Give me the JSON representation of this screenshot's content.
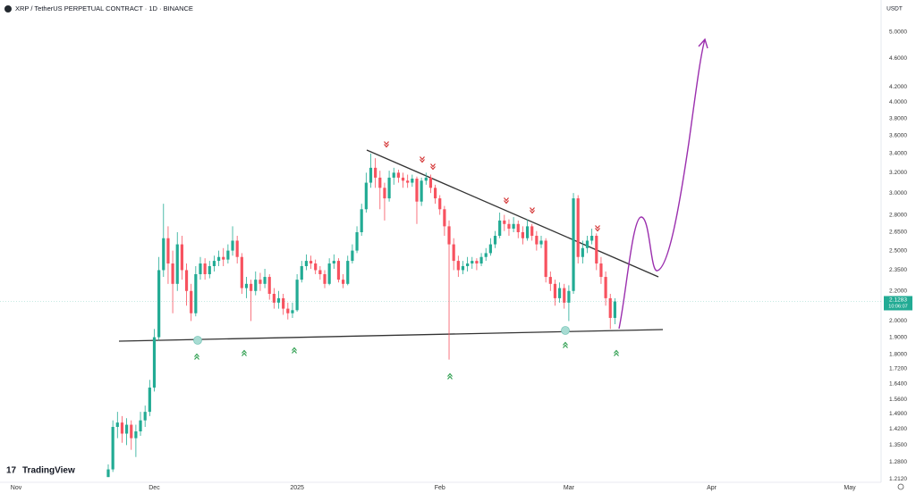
{
  "chart_data": {
    "type": "candlestick",
    "title": "XRP / TetherUS PERPETUAL CONTRACT · 1D · BINANCE",
    "currency": "USDT",
    "watermark": "TradingView",
    "countdown": "10:06:07",
    "log_scale": true,
    "grid": false,
    "up_color": "#22ab94",
    "down_color": "#f7525f",
    "xlim": [
      -23.5,
      167.8
    ],
    "xticks": [
      {
        "value": -20,
        "label": "Nov"
      },
      {
        "value": 10,
        "label": "Dec"
      },
      {
        "value": 41,
        "label": "2025"
      },
      {
        "value": 72,
        "label": "Feb"
      },
      {
        "value": 100,
        "label": "Mar"
      },
      {
        "value": 131,
        "label": "Apr"
      },
      {
        "value": 161,
        "label": "May"
      }
    ],
    "ylim": [
      1.2,
      5.53
    ],
    "yticks": [
      {
        "value": 5,
        "label": "5.0000"
      },
      {
        "value": 4.6,
        "label": "4.6000"
      },
      {
        "value": 4.2,
        "label": "4.2000"
      },
      {
        "value": 4,
        "label": "4.0000"
      },
      {
        "value": 3.8,
        "label": "3.8000"
      },
      {
        "value": 3.6,
        "label": "3.6000"
      },
      {
        "value": 3.4,
        "label": "3.4000"
      },
      {
        "value": 3.2,
        "label": "3.2000"
      },
      {
        "value": 3,
        "label": "3.0000"
      },
      {
        "value": 2.8,
        "label": "2.8000"
      },
      {
        "value": 2.65,
        "label": "2.6500"
      },
      {
        "value": 2.5,
        "label": "2.5000"
      },
      {
        "value": 2.35,
        "label": "2.3500"
      },
      {
        "value": 2.2,
        "label": "2.2000"
      },
      {
        "value": 2,
        "label": "2.0000"
      },
      {
        "value": 1.9,
        "label": "1.9000"
      },
      {
        "value": 1.8,
        "label": "1.8000"
      },
      {
        "value": 1.72,
        "label": "1.7200"
      },
      {
        "value": 1.64,
        "label": "1.6400"
      },
      {
        "value": 1.56,
        "label": "1.5600"
      },
      {
        "value": 1.49,
        "label": "1.4900"
      },
      {
        "value": 1.42,
        "label": "1.4200"
      },
      {
        "value": 1.35,
        "label": "1.3500"
      },
      {
        "value": 1.28,
        "label": "1.2800"
      },
      {
        "value": 1.212,
        "label": "1.2120"
      }
    ],
    "open": [
      1.22,
      1.25,
      1.43,
      1.45,
      1.4,
      1.44,
      1.38,
      1.41,
      1.46,
      1.5,
      1.62,
      1.9,
      2.35,
      2.6,
      2.4,
      2.25,
      2.55,
      2.35,
      2.2,
      2.05,
      2.32,
      2.4,
      2.32,
      2.38,
      2.42,
      2.45,
      2.43,
      2.5,
      2.58,
      2.45,
      2.22,
      2.25,
      2.2,
      2.28,
      2.25,
      2.3,
      2.18,
      2.12,
      2.15,
      2.08,
      2.05,
      2.07,
      2.28,
      2.38,
      2.42,
      2.4,
      2.35,
      2.32,
      2.25,
      2.4,
      2.42,
      2.28,
      2.25,
      2.42,
      2.5,
      2.65,
      2.85,
      3.1,
      3.25,
      3.15,
      3.05,
      2.95,
      3.15,
      3.2,
      3.15,
      3.12,
      3.1,
      3.14,
      2.92,
      3.12,
      3.15,
      3.05,
      2.95,
      2.85,
      2.7,
      2.55,
      2.42,
      2.35,
      2.38,
      2.4,
      2.42,
      2.4,
      2.45,
      2.48,
      2.55,
      2.62,
      2.75,
      2.72,
      2.68,
      2.72,
      2.65,
      2.6,
      2.7,
      2.62,
      2.55,
      2.58,
      2.3,
      2.25,
      2.15,
      2.22,
      2.12,
      2.2,
      2.95,
      2.45,
      2.52,
      2.58,
      2.62,
      2.4,
      2.3,
      2.15,
      2.02
    ],
    "high": [
      1.27,
      1.46,
      1.5,
      1.48,
      1.47,
      1.46,
      1.44,
      1.5,
      1.53,
      1.66,
      1.95,
      2.45,
      2.9,
      2.7,
      2.5,
      2.65,
      2.62,
      2.4,
      2.25,
      2.38,
      2.45,
      2.44,
      2.42,
      2.46,
      2.5,
      2.52,
      2.55,
      2.7,
      2.62,
      2.48,
      2.3,
      2.28,
      2.34,
      2.33,
      2.36,
      2.32,
      2.22,
      2.2,
      2.18,
      2.12,
      2.12,
      2.32,
      2.42,
      2.47,
      2.46,
      2.43,
      2.38,
      2.35,
      2.44,
      2.47,
      2.44,
      2.32,
      2.46,
      2.55,
      2.7,
      2.9,
      3.2,
      3.4,
      3.35,
      3.22,
      3.1,
      3.22,
      3.25,
      3.23,
      3.2,
      3.18,
      3.18,
      3.16,
      3.15,
      3.2,
      3.18,
      3.08,
      2.98,
      2.88,
      2.75,
      2.6,
      2.46,
      2.42,
      2.45,
      2.45,
      2.44,
      2.48,
      2.52,
      2.6,
      2.66,
      2.82,
      2.8,
      2.76,
      2.78,
      2.75,
      2.7,
      2.76,
      2.72,
      2.66,
      2.62,
      2.6,
      2.34,
      2.28,
      2.26,
      2.25,
      2.24,
      3.0,
      2.98,
      2.58,
      2.62,
      2.68,
      2.64,
      2.45,
      2.34,
      2.18,
      2.15
    ],
    "low": [
      1.22,
      1.24,
      1.38,
      1.36,
      1.35,
      1.33,
      1.3,
      1.39,
      1.43,
      1.48,
      1.6,
      1.88,
      2.3,
      2.25,
      2.05,
      2.2,
      2.28,
      2.1,
      2.0,
      2.03,
      2.28,
      2.28,
      2.29,
      2.34,
      2.38,
      2.38,
      2.4,
      2.46,
      2.4,
      2.18,
      2.15,
      2.0,
      2.17,
      2.2,
      2.22,
      2.14,
      2.08,
      2.08,
      2.04,
      2.01,
      2.02,
      2.06,
      2.26,
      2.35,
      2.36,
      2.32,
      2.28,
      2.22,
      2.24,
      2.36,
      2.26,
      2.22,
      2.24,
      2.4,
      2.48,
      2.62,
      2.82,
      3.05,
      3.05,
      2.85,
      2.75,
      2.92,
      3.08,
      3.1,
      3.05,
      3.05,
      3.06,
      2.72,
      2.88,
      3.08,
      3.0,
      2.9,
      2.8,
      2.62,
      1.77,
      2.35,
      2.3,
      2.32,
      2.34,
      2.36,
      2.35,
      2.38,
      2.42,
      2.46,
      2.52,
      2.6,
      2.66,
      2.62,
      2.65,
      2.6,
      2.55,
      2.58,
      2.58,
      2.5,
      2.52,
      2.26,
      2.2,
      2.1,
      2.12,
      2.08,
      2.0,
      2.18,
      2.4,
      2.4,
      2.48,
      2.55,
      2.35,
      2.25,
      2.1,
      1.95,
      1.98
    ],
    "close": [
      1.25,
      1.43,
      1.45,
      1.4,
      1.44,
      1.38,
      1.41,
      1.46,
      1.5,
      1.62,
      1.9,
      2.35,
      2.6,
      2.4,
      2.25,
      2.55,
      2.35,
      2.2,
      2.05,
      2.32,
      2.4,
      2.32,
      2.38,
      2.42,
      2.45,
      2.43,
      2.5,
      2.58,
      2.45,
      2.22,
      2.25,
      2.2,
      2.28,
      2.25,
      2.3,
      2.18,
      2.12,
      2.15,
      2.08,
      2.05,
      2.07,
      2.28,
      2.38,
      2.42,
      2.4,
      2.35,
      2.32,
      2.25,
      2.4,
      2.42,
      2.28,
      2.25,
      2.42,
      2.5,
      2.65,
      2.85,
      3.1,
      3.25,
      3.15,
      3.05,
      2.95,
      3.15,
      3.2,
      3.15,
      3.12,
      3.1,
      3.14,
      2.92,
      3.12,
      3.15,
      3.05,
      2.95,
      2.85,
      2.7,
      2.55,
      2.42,
      2.35,
      2.38,
      2.4,
      2.42,
      2.4,
      2.45,
      2.48,
      2.55,
      2.62,
      2.75,
      2.72,
      2.68,
      2.72,
      2.65,
      2.6,
      2.7,
      2.62,
      2.55,
      2.58,
      2.3,
      2.25,
      2.15,
      2.22,
      2.12,
      2.2,
      2.95,
      2.45,
      2.52,
      2.58,
      2.62,
      2.4,
      2.3,
      2.15,
      2.02,
      2.1283
    ]
  }
}
